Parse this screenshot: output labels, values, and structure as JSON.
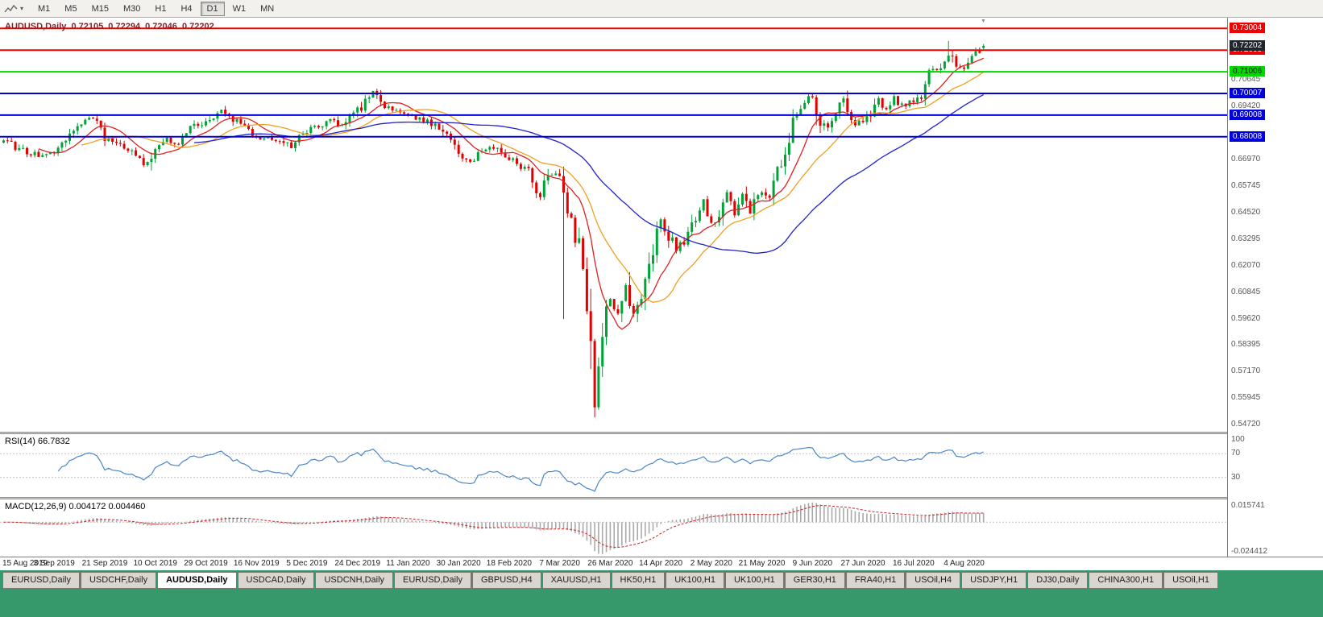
{
  "colors": {
    "bull": "#00a335",
    "bear": "#e00000",
    "ma_fast": "#e02020",
    "ma_mid": "#f0a020",
    "ma_slow": "#2222cc",
    "rsi_line": "#4a86c8",
    "macd_hist": "#aaaaaa",
    "macd_signal": "#d02020",
    "level_red": "#f00000",
    "level_green": "#00d800",
    "level_blue": "#0000dd",
    "current_badge_bg": "#20242c",
    "tab_bar_bg": "#35996b"
  },
  "icons": {
    "dropdown_caret": "▾",
    "chart_shift_marker": "▼"
  },
  "toolbar": {
    "timeframes": [
      "M1",
      "M5",
      "M15",
      "M30",
      "H1",
      "H4",
      "D1",
      "W1",
      "MN"
    ],
    "active": "D1"
  },
  "chart": {
    "title": "AUDUSD,Daily",
    "ohlc": {
      "open": "0.72105",
      "high": "0.72294",
      "low": "0.72046",
      "close": "0.72202"
    },
    "price_range": {
      "top": 0.735,
      "bottom": 0.544
    },
    "current_price_badge": "0.72202",
    "levels": [
      {
        "price": 0.73004,
        "label": "0.73004",
        "color": "red"
      },
      {
        "price": 0.72005,
        "label": "0.72005",
        "color": "red"
      },
      {
        "price": 0.71006,
        "label": "0.71006",
        "color": "green"
      },
      {
        "price": 0.70007,
        "label": "0.70007",
        "color": "blue"
      },
      {
        "price": 0.69008,
        "label": "0.69008",
        "color": "blue"
      },
      {
        "price": 0.68008,
        "label": "0.68008",
        "color": "blue"
      }
    ],
    "axis_labels": [
      "0.70645",
      "0.69420",
      "0.66970",
      "0.65745",
      "0.64520",
      "0.63295",
      "0.62070",
      "0.60845",
      "0.59620",
      "0.58395",
      "0.57170",
      "0.55945",
      "0.54720"
    ]
  },
  "chart_data": {
    "type": "candlestick",
    "symbol": "AUDUSD",
    "timeframe": "Daily",
    "candles_count": 253,
    "ylim": [
      0.544,
      0.735
    ],
    "x_labels": [
      "15 Aug 2019",
      "3 Sep 2019",
      "21 Sep 2019",
      "10 Oct 2019",
      "29 Oct 2019",
      "16 Nov 2019",
      "5 Dec 2019",
      "24 Dec 2019",
      "11 Jan 2020",
      "30 Jan 2020",
      "18 Feb 2020",
      "7 Mar 2020",
      "26 Mar 2020",
      "14 Apr 2020",
      "2 May 2020",
      "21 May 2020",
      "9 Jun 2020",
      "27 Jun 2020",
      "16 Jul 2020",
      "4 Aug 2020"
    ],
    "x_label_step": 13,
    "price_path_anchors": [
      [
        0,
        0.678
      ],
      [
        3,
        0.6755
      ],
      [
        6,
        0.6728
      ],
      [
        10,
        0.6715
      ],
      [
        13,
        0.6742
      ],
      [
        16,
        0.6798
      ],
      [
        19,
        0.6856
      ],
      [
        23,
        0.6886
      ],
      [
        26,
        0.6798
      ],
      [
        29,
        0.6766
      ],
      [
        32,
        0.6744
      ],
      [
        35,
        0.6698
      ],
      [
        37,
        0.667
      ],
      [
        39,
        0.6752
      ],
      [
        42,
        0.6786
      ],
      [
        45,
        0.6756
      ],
      [
        48,
        0.6836
      ],
      [
        52,
        0.6876
      ],
      [
        56,
        0.6916
      ],
      [
        59,
        0.6886
      ],
      [
        62,
        0.6836
      ],
      [
        65,
        0.6793
      ],
      [
        68,
        0.6803
      ],
      [
        71,
        0.6786
      ],
      [
        74,
        0.6756
      ],
      [
        78,
        0.6826
      ],
      [
        81,
        0.6856
      ],
      [
        84,
        0.6876
      ],
      [
        87,
        0.6846
      ],
      [
        91,
        0.6916
      ],
      [
        95,
        0.7006
      ],
      [
        98,
        0.6946
      ],
      [
        101,
        0.6916
      ],
      [
        104,
        0.6896
      ],
      [
        108,
        0.6876
      ],
      [
        112,
        0.6846
      ],
      [
        115,
        0.6776
      ],
      [
        117,
        0.6716
      ],
      [
        120,
        0.6686
      ],
      [
        123,
        0.6726
      ],
      [
        126,
        0.6746
      ],
      [
        129,
        0.6706
      ],
      [
        132,
        0.6676
      ],
      [
        135,
        0.6636
      ],
      [
        138,
        0.6526
      ],
      [
        140,
        0.6626
      ],
      [
        143,
        0.6636
      ],
      [
        144,
        0.6576
      ],
      [
        146,
        0.6396
      ],
      [
        148,
        0.6286
      ],
      [
        149,
        0.6186
      ],
      [
        150,
        0.5996
      ],
      [
        151,
        0.5786
      ],
      [
        152,
        0.5556
      ],
      [
        153,
        0.5796
      ],
      [
        154,
        0.5936
      ],
      [
        156,
        0.6046
      ],
      [
        158,
        0.5976
      ],
      [
        160,
        0.6126
      ],
      [
        162,
        0.5986
      ],
      [
        164,
        0.6086
      ],
      [
        166,
        0.6216
      ],
      [
        169,
        0.6436
      ],
      [
        171,
        0.6346
      ],
      [
        173,
        0.6286
      ],
      [
        175,
        0.6326
      ],
      [
        178,
        0.6436
      ],
      [
        180,
        0.6506
      ],
      [
        182,
        0.6406
      ],
      [
        184,
        0.6436
      ],
      [
        186,
        0.6536
      ],
      [
        188,
        0.6446
      ],
      [
        190,
        0.6526
      ],
      [
        192,
        0.6456
      ],
      [
        195,
        0.6556
      ],
      [
        197,
        0.6526
      ],
      [
        199,
        0.6636
      ],
      [
        201,
        0.6716
      ],
      [
        203,
        0.6896
      ],
      [
        205,
        0.6946
      ],
      [
        208,
        0.6996
      ],
      [
        210,
        0.6876
      ],
      [
        212,
        0.6846
      ],
      [
        214,
        0.6926
      ],
      [
        216,
        0.6966
      ],
      [
        218,
        0.6856
      ],
      [
        221,
        0.6866
      ],
      [
        223,
        0.6906
      ],
      [
        225,
        0.6966
      ],
      [
        227,
        0.6936
      ],
      [
        229,
        0.6986
      ],
      [
        231,
        0.6946
      ],
      [
        234,
        0.6976
      ],
      [
        236,
        0.6996
      ],
      [
        238,
        0.7106
      ],
      [
        241,
        0.7126
      ],
      [
        243,
        0.7186
      ],
      [
        245,
        0.7126
      ],
      [
        247,
        0.7116
      ],
      [
        249,
        0.7176
      ],
      [
        251,
        0.7206
      ],
      [
        252,
        0.72202
      ]
    ],
    "wick_overrides": [
      {
        "i": 144,
        "low": 0.596
      },
      {
        "i": 152,
        "low": 0.5506
      },
      {
        "i": 243,
        "high": 0.7243
      }
    ],
    "moving_averages": [
      {
        "period": 10
      },
      {
        "period": 21
      },
      {
        "period": 50
      }
    ]
  },
  "rsi": {
    "name": "RSI(14)",
    "value": "66.7832",
    "period": 14,
    "axis_labels": [
      "100",
      "70",
      "30"
    ],
    "guide_levels": [
      70,
      30
    ]
  },
  "macd": {
    "name": "MACD(12,26,9)",
    "value1": "0.004172",
    "value2": "0.004460",
    "fast": 12,
    "slow": 26,
    "signal": 9,
    "axis_top": "0.015741",
    "axis_bottom": "-0.024412"
  },
  "tabs": {
    "active_index": 2,
    "items": [
      "EURUSD,Daily",
      "USDCHF,Daily",
      "AUDUSD,Daily",
      "USDCAD,Daily",
      "USDCNH,Daily",
      "EURUSD,Daily",
      "GBPUSD,H4",
      "XAUUSD,H1",
      "HK50,H1",
      "UK100,H1",
      "UK100,H1",
      "GER30,H1",
      "FRA40,H1",
      "USOil,H4",
      "USDJPY,H1",
      "DJ30,Daily",
      "CHINA300,H1",
      "USOil,H1"
    ]
  }
}
